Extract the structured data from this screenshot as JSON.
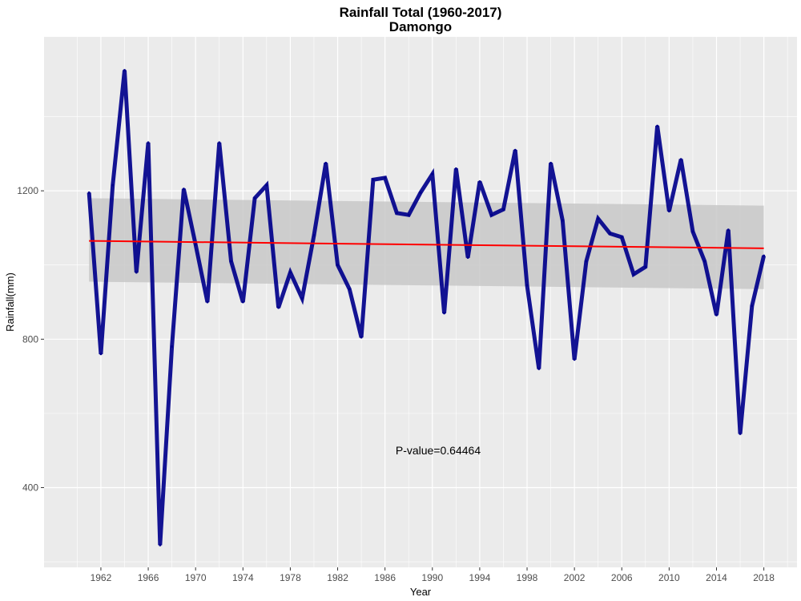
{
  "chart_data": {
    "type": "line",
    "title": "Rainfall Total (1960-2017)",
    "subtitle": "Damongo",
    "xlabel": "Year",
    "ylabel": "Rainfall(mm)",
    "xlim": [
      1957.2,
      1922.7
    ],
    "x_range": [
      1957.2,
      2020.8
    ],
    "ylim": [
      185,
      1615
    ],
    "x_ticks": [
      1962,
      1966,
      1970,
      1974,
      1978,
      1982,
      1986,
      1990,
      1994,
      1998,
      2002,
      2006,
      2010,
      2014,
      2018
    ],
    "y_ticks": [
      400,
      800,
      1200
    ],
    "grid": true,
    "background": "#EBEBEB",
    "series": [
      {
        "color": "#00008B",
        "x": [
          1961,
          1962,
          1963,
          1964,
          1965,
          1966,
          1967,
          1968,
          1969,
          1970,
          1971,
          1972,
          1973,
          1974,
          1975,
          1976,
          1977,
          1978,
          1979,
          1980,
          1981,
          1982,
          1983,
          1984,
          1985,
          1986,
          1987,
          1988,
          1989,
          1990,
          1991,
          1992,
          1993,
          1994,
          1995,
          1996,
          1997,
          1998,
          1999,
          2000,
          2001,
          2002,
          2003,
          2004,
          2005,
          2006,
          2007,
          2008,
          2009,
          2010,
          2011,
          2012,
          2013,
          2014,
          2015,
          2016,
          2017,
          2018
        ],
        "values": [
          1195,
          760,
          1215,
          1525,
          980,
          1330,
          245,
          780,
          1205,
          1055,
          900,
          1330,
          1010,
          900,
          1180,
          1215,
          885,
          980,
          910,
          1080,
          1275,
          1000,
          935,
          805,
          1230,
          1235,
          1140,
          1135,
          1195,
          1245,
          870,
          1260,
          1020,
          1225,
          1135,
          1150,
          1310,
          945,
          720,
          1275,
          1120,
          745,
          1010,
          1125,
          1085,
          1075,
          975,
          995,
          1375,
          1145,
          1285,
          1090,
          1010,
          865,
          1095,
          545,
          890,
          1025
        ]
      }
    ],
    "trend": {
      "color": "#FF0000",
      "start": [
        1961,
        1065
      ],
      "end": [
        2018,
        1045
      ],
      "ci_start": [
        955,
        1180
      ],
      "ci_end": [
        935,
        1160
      ],
      "ci_color": "#C8C8C8"
    },
    "annotation": "P-value=0.64464"
  }
}
